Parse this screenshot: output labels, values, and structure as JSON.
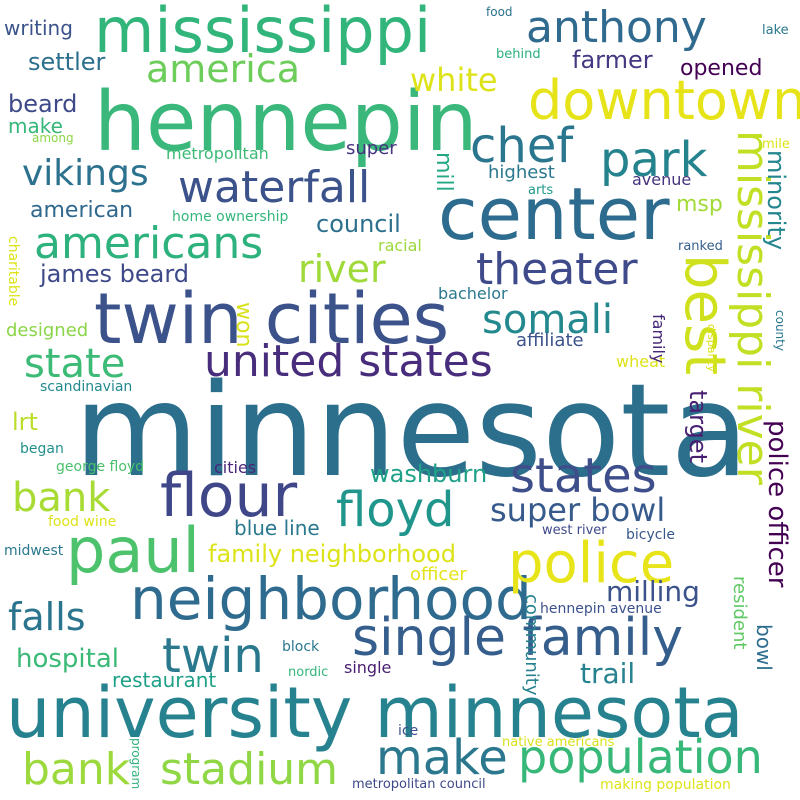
{
  "words": [
    {
      "text": "minnesota",
      "color": "#2c6f8d"
    },
    {
      "text": "university minnesota",
      "color": "#26828e"
    },
    {
      "text": "hennepin",
      "color": "#3ab77a"
    },
    {
      "text": "mississippi",
      "color": "#31b57b"
    },
    {
      "text": "twin cities",
      "color": "#3b528b"
    },
    {
      "text": "center",
      "color": "#2d6c8e"
    },
    {
      "text": "neighborhood",
      "color": "#2f6b8e"
    },
    {
      "text": "single family",
      "color": "#355e8d"
    },
    {
      "text": "flour",
      "color": "#3f4788"
    },
    {
      "text": "paul",
      "color": "#4cc26c"
    },
    {
      "text": "police",
      "color": "#e7e419"
    },
    {
      "text": "downtown",
      "color": "#e6e419"
    },
    {
      "text": "best",
      "color": "#cfe11c"
    },
    {
      "text": "mississippi river",
      "color": "#c2df23"
    },
    {
      "text": "make",
      "color": "#2a778e"
    },
    {
      "text": "population",
      "color": "#37b878"
    },
    {
      "text": "bank",
      "color": "#9bd93c"
    },
    {
      "text": "stadium",
      "color": "#8fd744"
    },
    {
      "text": "anthony",
      "color": "#306a8e"
    },
    {
      "text": "waterfall",
      "color": "#3b528b"
    },
    {
      "text": "americans",
      "color": "#2db27d"
    },
    {
      "text": "chef",
      "color": "#2a768e"
    },
    {
      "text": "park",
      "color": "#25838e"
    },
    {
      "text": "theater",
      "color": "#3e4a89"
    },
    {
      "text": "united states",
      "color": "#472d7b"
    },
    {
      "text": "twin",
      "color": "#2a788e"
    },
    {
      "text": "states",
      "color": "#3d4e8a"
    },
    {
      "text": "floyd",
      "color": "#1f958b"
    },
    {
      "text": "bank",
      "color": "#a8db34"
    },
    {
      "text": "america",
      "color": "#6ccd5a"
    },
    {
      "text": "river",
      "color": "#9fda3a"
    },
    {
      "text": "state",
      "color": "#3bbb75"
    },
    {
      "text": "somali",
      "color": "#23898e"
    },
    {
      "text": "super bowl",
      "color": "#375a8c"
    },
    {
      "text": "vikings",
      "color": "#2c718e"
    },
    {
      "text": "falls",
      "color": "#2b748e"
    },
    {
      "text": "hospital",
      "color": "#3aba76"
    },
    {
      "text": "white",
      "color": "#dde318"
    },
    {
      "text": "police officer",
      "color": "#440154"
    },
    {
      "text": "target",
      "color": "#481f70"
    },
    {
      "text": "minority",
      "color": "#24868e"
    },
    {
      "text": "trail",
      "color": "#26828e"
    },
    {
      "text": "washburn",
      "color": "#1fa188"
    },
    {
      "text": "family neighborhood",
      "color": "#dde318"
    },
    {
      "text": "milling",
      "color": "#3b528b"
    },
    {
      "text": "james beard",
      "color": "#3e4989"
    },
    {
      "text": "council",
      "color": "#2d708e"
    },
    {
      "text": "american",
      "color": "#30678d"
    },
    {
      "text": "settler",
      "color": "#2d708e"
    },
    {
      "text": "beard",
      "color": "#3e4989"
    },
    {
      "text": "opened",
      "color": "#440154"
    },
    {
      "text": "farmer",
      "color": "#453781"
    },
    {
      "text": "mill",
      "color": "#22a884"
    },
    {
      "text": "msp",
      "color": "#a2da37"
    },
    {
      "text": "lrt",
      "color": "#bade28"
    },
    {
      "text": "won",
      "color": "#d8e219"
    },
    {
      "text": "restaurant",
      "color": "#1fa187"
    },
    {
      "text": "community",
      "color": "#26828e"
    },
    {
      "text": "resident",
      "color": "#5ec962"
    },
    {
      "text": "bowl",
      "color": "#2e6d8e"
    },
    {
      "text": "writing",
      "color": "#3a538b"
    },
    {
      "text": "make",
      "color": "#35b779"
    },
    {
      "text": "blue line",
      "color": "#2a788e"
    },
    {
      "text": "affiliate",
      "color": "#3b528b"
    },
    {
      "text": "officer",
      "color": "#e5e419"
    },
    {
      "text": "metropolitan",
      "color": "#3bbb75"
    },
    {
      "text": "super",
      "color": "#46327e"
    },
    {
      "text": "highest",
      "color": "#2a788e"
    },
    {
      "text": "avenue",
      "color": "#46337e"
    },
    {
      "text": "bachelor",
      "color": "#2a788e"
    },
    {
      "text": "racial",
      "color": "#9bd93c"
    },
    {
      "text": "home ownership",
      "color": "#32b67a"
    },
    {
      "text": "designed",
      "color": "#8bd646"
    },
    {
      "text": "cities",
      "color": "#482576"
    },
    {
      "text": "wheat",
      "color": "#dde318"
    },
    {
      "text": "family",
      "color": "#482878"
    },
    {
      "text": "scandinavian",
      "color": "#23898e"
    },
    {
      "text": "george floyd",
      "color": "#4ac16d"
    },
    {
      "text": "began",
      "color": "#21918c"
    },
    {
      "text": "food wine",
      "color": "#dde318"
    },
    {
      "text": "midwest",
      "color": "#2a788e"
    },
    {
      "text": "west river",
      "color": "#3e4989"
    },
    {
      "text": "bicycle",
      "color": "#38588c"
    },
    {
      "text": "hennepin avenue",
      "color": "#3b528b"
    },
    {
      "text": "single",
      "color": "#481d6f"
    },
    {
      "text": "block",
      "color": "#2a788e"
    },
    {
      "text": "nordic",
      "color": "#35b779"
    },
    {
      "text": "ice",
      "color": "#3b528b"
    },
    {
      "text": "native americans",
      "color": "#d8e219"
    },
    {
      "text": "metropolitan council",
      "color": "#3e4989"
    },
    {
      "text": "making population",
      "color": "#dde318"
    },
    {
      "text": "program",
      "color": "#2db27d"
    },
    {
      "text": "food",
      "color": "#2c728e"
    },
    {
      "text": "behind",
      "color": "#2ab07f"
    },
    {
      "text": "lake",
      "color": "#2a788e"
    },
    {
      "text": "mile",
      "color": "#dde318"
    },
    {
      "text": "arts",
      "color": "#1f988b"
    },
    {
      "text": "ranked",
      "color": "#355f8d"
    },
    {
      "text": "county",
      "color": "#2a788e"
    },
    {
      "text": "disparity",
      "color": "#dde318"
    },
    {
      "text": "among",
      "color": "#8bd646"
    },
    {
      "text": "charitable",
      "color": "#dde318"
    }
  ]
}
